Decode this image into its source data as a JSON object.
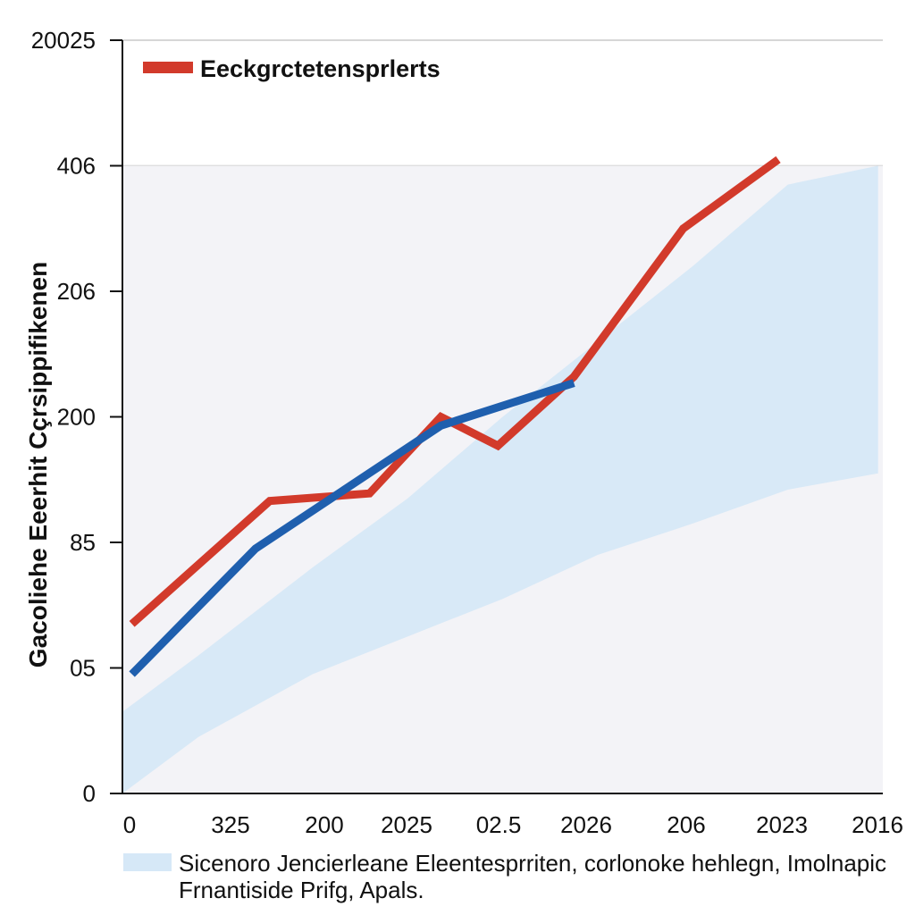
{
  "chart_data": {
    "type": "line",
    "title": "",
    "ylabel": "Gacoliehe Eeerhit Cçrsippifikenen",
    "xlabel": "",
    "x_tick_labels": [
      "0",
      "325",
      "200",
      "2025",
      "02.5",
      "2026",
      "206",
      "2023",
      "2016"
    ],
    "y_ticks": [
      {
        "label": "0",
        "value": 0
      },
      {
        "label": "05",
        "value": 1
      },
      {
        "label": "85",
        "value": 2
      },
      {
        "label": "200",
        "value": 3
      },
      {
        "label": "206",
        "value": 4
      },
      {
        "label": "406",
        "value": 5
      },
      {
        "label": "20025",
        "value": 6
      }
    ],
    "ylim": [
      0,
      6
    ],
    "xlim": [
      0,
      8
    ],
    "grid": true,
    "legend_position": "top-left",
    "legend": [
      {
        "name": "Eeckgrctetensprlerts",
        "color": "#d23a2b"
      }
    ],
    "band_legend": {
      "line1": "Sicenoro Jencierleane Eleentesprriten, corlonoke hehlegn, Imolnapic",
      "line2": "Frnantiside Prifg, Apals.",
      "color": "#d6e8f7"
    },
    "series": [
      {
        "name": "Eeckgrctetensprlerts",
        "color": "#d23a2b",
        "x": [
          0.1,
          1.55,
          2.6,
          3.35,
          3.95,
          4.75,
          5.9,
          6.9
        ],
        "y": [
          1.35,
          2.33,
          2.39,
          3.0,
          2.77,
          3.32,
          4.5,
          5.05
        ]
      },
      {
        "name": "",
        "color": "#1f5fae",
        "x": [
          0.1,
          1.4,
          3.35,
          4.75
        ],
        "y": [
          0.95,
          1.95,
          2.93,
          3.27
        ]
      }
    ],
    "band": {
      "color": "#d6e8f7",
      "x": [
        0.0,
        0.8,
        2.0,
        3.0,
        4.0,
        5.0,
        6.0,
        7.0,
        7.95
      ],
      "upper": [
        0.65,
        1.1,
        1.8,
        2.35,
        3.0,
        3.6,
        4.2,
        4.85,
        5.0
      ],
      "lower": [
        0.0,
        0.45,
        0.95,
        1.25,
        1.55,
        1.9,
        2.15,
        2.42,
        2.55
      ]
    }
  }
}
